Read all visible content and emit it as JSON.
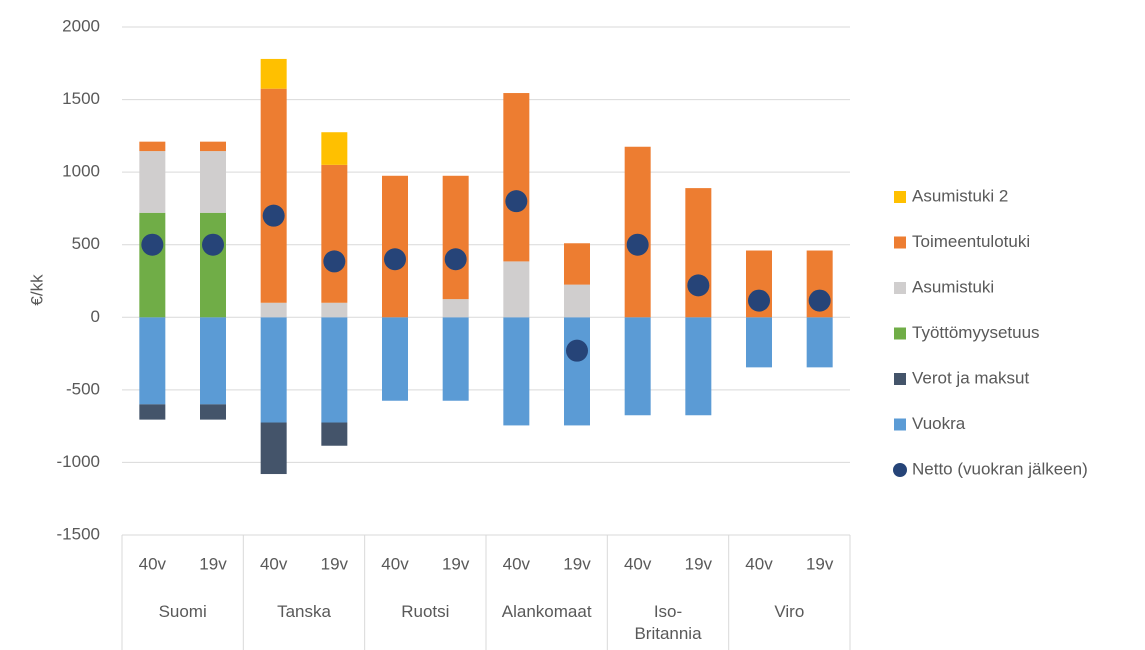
{
  "chart_data": {
    "type": "bar",
    "stacked": true,
    "y_label": "€/kk",
    "categories": [
      "40v",
      "19v",
      "40v",
      "19v",
      "40v",
      "19v",
      "40v",
      "19v",
      "40v",
      "19v",
      "40v",
      "19v"
    ],
    "groups": [
      "Suomi",
      "Tanska",
      "Ruotsi",
      "Alankomaat",
      "Iso-Britannia",
      "Viro"
    ],
    "ylim": [
      -1500,
      2000
    ],
    "yticks": [
      -1500,
      -1000,
      -500,
      0,
      500,
      1000,
      1500,
      2000
    ],
    "grid": true,
    "legend": "right",
    "series": [
      {
        "name": "Asumistuki 2",
        "type": "bar",
        "color": "#ffc000",
        "values": [
          0,
          0,
          205,
          225,
          0,
          0,
          0,
          0,
          0,
          0,
          0,
          0
        ]
      },
      {
        "name": "Toimeentulotuki",
        "type": "bar",
        "color": "#ed7d31",
        "values": [
          65,
          65,
          1475,
          950,
          975,
          850,
          1160,
          285,
          1175,
          890,
          460,
          460
        ]
      },
      {
        "name": "Asumistuki",
        "type": "bar",
        "color": "#d0cece",
        "values": [
          425,
          425,
          100,
          100,
          0,
          125,
          385,
          225,
          0,
          0,
          0,
          0
        ]
      },
      {
        "name": "Työttömyysetuus",
        "type": "bar",
        "color": "#70ad47",
        "values": [
          720,
          720,
          0,
          0,
          0,
          0,
          0,
          0,
          0,
          0,
          0,
          0
        ]
      },
      {
        "name": "Verot ja maksut",
        "type": "bar",
        "color": "#44546a",
        "values": [
          -105,
          -105,
          -355,
          -160,
          0,
          0,
          0,
          0,
          0,
          0,
          0,
          0
        ]
      },
      {
        "name": "Vuokra",
        "type": "bar",
        "color": "#5b9bd5",
        "values": [
          -600,
          -600,
          -725,
          -725,
          -575,
          -575,
          -745,
          -745,
          -675,
          -675,
          -345,
          -345
        ]
      },
      {
        "name": "Netto (vuokran jälkeen)",
        "type": "scatter",
        "color": "#264478",
        "values": [
          500,
          500,
          700,
          385,
          400,
          400,
          800,
          -230,
          500,
          220,
          115,
          115
        ]
      }
    ]
  }
}
